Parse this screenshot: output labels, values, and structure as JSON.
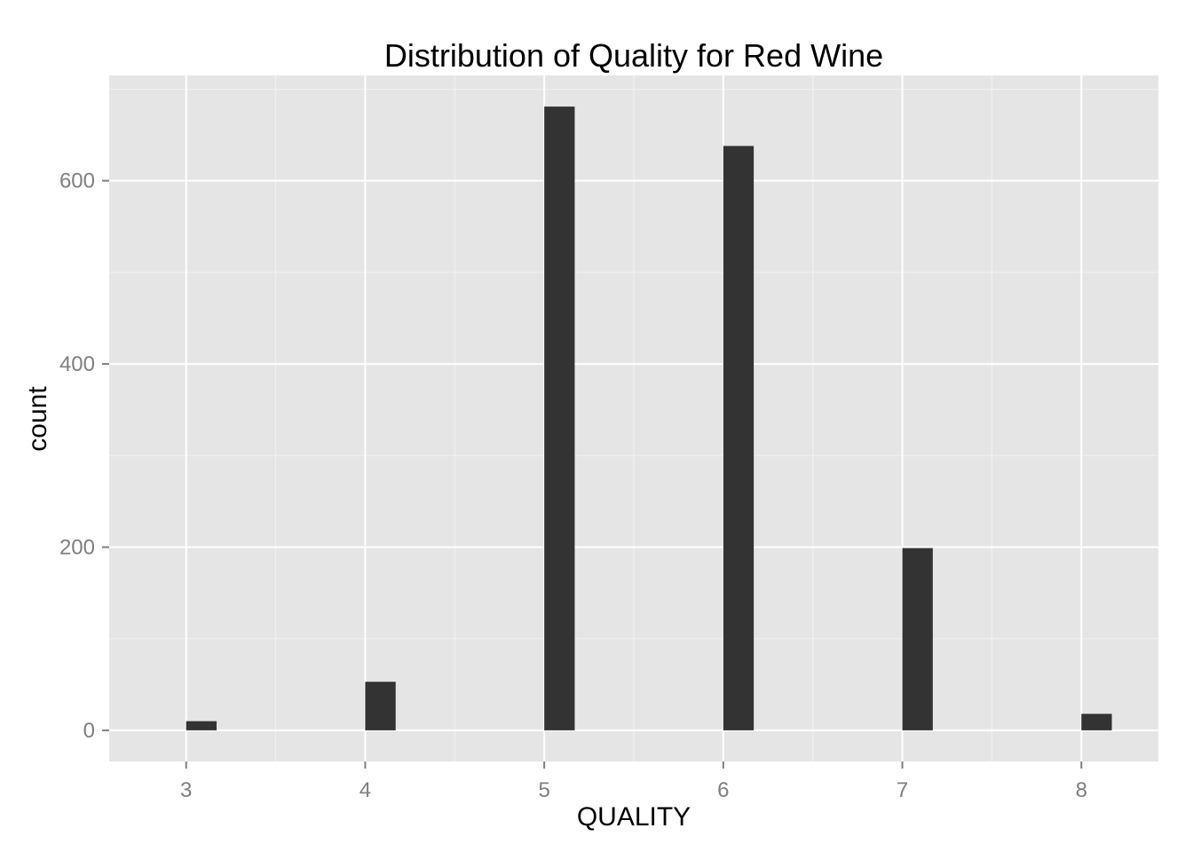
{
  "chart_data": {
    "type": "bar",
    "title": "Distribution of Quality for Red Wine",
    "xlabel": "QUALITY",
    "ylabel": "count",
    "x": [
      3,
      4,
      5,
      6,
      7,
      8
    ],
    "values": [
      10,
      53,
      681,
      638,
      199,
      18
    ],
    "x_ticks": [
      "3",
      "4",
      "5",
      "6",
      "7",
      "8"
    ],
    "y_ticks": [
      "0",
      "200",
      "400",
      "600"
    ],
    "y_tick_values": [
      0,
      200,
      400,
      600
    ],
    "xlim": [
      2.57,
      8.43
    ],
    "ylim": [
      -34,
      715
    ],
    "bar_width": 0.17,
    "grid": true,
    "legend": "none",
    "colors": {
      "panel_background": "#e5e5e5",
      "grid_major": "#ffffff",
      "grid_minor": "#f2f2f2",
      "bar_fill": "#333333",
      "tick_label": "#7f7f7f",
      "text": "#000000"
    }
  }
}
